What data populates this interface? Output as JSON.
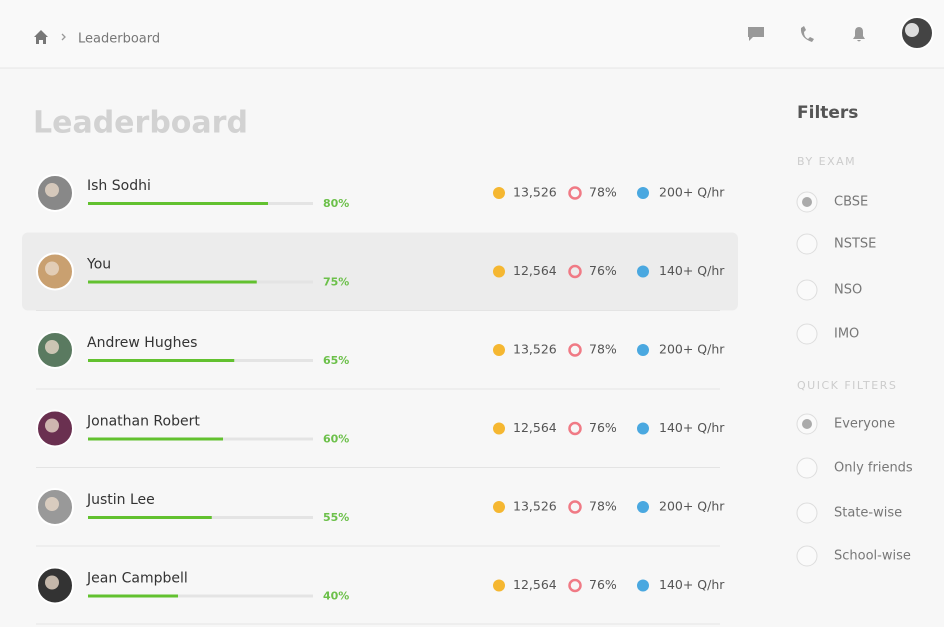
{
  "header": {
    "breadcrumb": "Leaderboard"
  },
  "page_title": "Leaderboard",
  "rows": [
    {
      "name": "Ish Sodhi",
      "progress": 80,
      "progress_label": "80%",
      "coins": "13,526",
      "accuracy": "78%",
      "speed": "200+ Q/hr",
      "highlight": false
    },
    {
      "name": "You",
      "progress": 75,
      "progress_label": "75%",
      "coins": "12,564",
      "accuracy": "76%",
      "speed": "140+ Q/hr",
      "highlight": true
    },
    {
      "name": "Andrew Hughes",
      "progress": 65,
      "progress_label": "65%",
      "coins": "13,526",
      "accuracy": "78%",
      "speed": "200+ Q/hr",
      "highlight": false
    },
    {
      "name": "Jonathan Robert",
      "progress": 60,
      "progress_label": "60%",
      "coins": "12,564",
      "accuracy": "76%",
      "speed": "140+ Q/hr",
      "highlight": false
    },
    {
      "name": "Justin Lee",
      "progress": 55,
      "progress_label": "55%",
      "coins": "13,526",
      "accuracy": "78%",
      "speed": "200+ Q/hr",
      "highlight": false
    },
    {
      "name": "Jean Campbell",
      "progress": 40,
      "progress_label": "40%",
      "coins": "12,564",
      "accuracy": "76%",
      "speed": "140+ Q/hr",
      "highlight": false
    }
  ],
  "filters": {
    "title": "Filters",
    "groups": [
      {
        "heading": "BY EXAM",
        "options": [
          {
            "label": "CBSE",
            "selected": true
          },
          {
            "label": "NSTSE",
            "selected": false
          },
          {
            "label": "NSO",
            "selected": false
          },
          {
            "label": "IMO",
            "selected": false
          }
        ]
      },
      {
        "heading": "QUICK FILTERS",
        "options": [
          {
            "label": "Everyone",
            "selected": true
          },
          {
            "label": "Only friends",
            "selected": false
          },
          {
            "label": "State-wise",
            "selected": false
          },
          {
            "label": "School-wise",
            "selected": false
          }
        ]
      }
    ]
  }
}
